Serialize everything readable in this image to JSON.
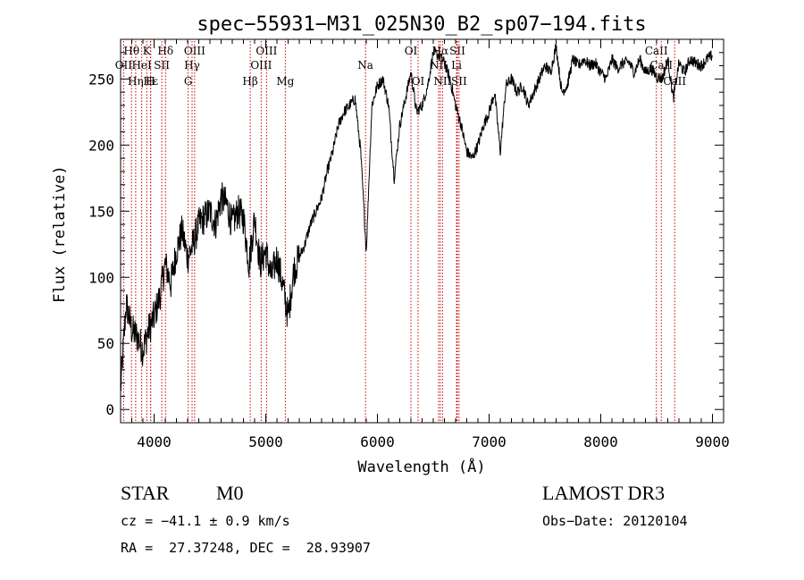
{
  "chart_data": {
    "type": "line",
    "title": "spec−55931−M31_025N30_B2_sp07−194.fits",
    "xlabel": "Wavelength (Å)",
    "ylabel": "Flux (relative)",
    "xlim": [
      3700,
      9100
    ],
    "ylim": [
      -10,
      280
    ],
    "xticks": [
      4000,
      5000,
      6000,
      7000,
      8000,
      9000
    ],
    "yticks": [
      0,
      50,
      100,
      150,
      200,
      250
    ],
    "colors": {
      "spectrum": "#000000",
      "lines": "#cc0000"
    },
    "spectrum": {
      "x": [
        3700,
        3750,
        3800,
        3850,
        3900,
        3950,
        4000,
        4050,
        4100,
        4150,
        4200,
        4250,
        4300,
        4350,
        4400,
        4450,
        4500,
        4550,
        4600,
        4650,
        4700,
        4750,
        4800,
        4850,
        4900,
        4950,
        5000,
        5050,
        5100,
        5150,
        5200,
        5250,
        5300,
        5350,
        5400,
        5450,
        5500,
        5550,
        5600,
        5650,
        5700,
        5750,
        5800,
        5850,
        5900,
        5950,
        6000,
        6050,
        6100,
        6150,
        6200,
        6250,
        6300,
        6350,
        6400,
        6450,
        6500,
        6550,
        6600,
        6650,
        6700,
        6750,
        6800,
        6850,
        6900,
        6950,
        7000,
        7050,
        7100,
        7150,
        7200,
        7250,
        7300,
        7350,
        7400,
        7450,
        7500,
        7550,
        7600,
        7650,
        7700,
        7750,
        7800,
        7850,
        7900,
        7950,
        8000,
        8050,
        8100,
        8150,
        8200,
        8250,
        8300,
        8350,
        8400,
        8450,
        8500,
        8550,
        8600,
        8650,
        8700,
        8750,
        8800,
        8850,
        8900,
        8950,
        9000
      ],
      "y": [
        15,
        80,
        60,
        55,
        45,
        60,
        70,
        85,
        110,
        95,
        120,
        135,
        115,
        125,
        140,
        145,
        150,
        140,
        160,
        155,
        140,
        150,
        145,
        110,
        145,
        110,
        120,
        100,
        115,
        95,
        70,
        105,
        115,
        125,
        140,
        150,
        160,
        180,
        195,
        215,
        225,
        230,
        235,
        195,
        120,
        230,
        245,
        250,
        230,
        175,
        215,
        235,
        255,
        225,
        230,
        245,
        270,
        268,
        262,
        250,
        230,
        215,
        195,
        190,
        200,
        215,
        225,
        240,
        195,
        245,
        250,
        240,
        245,
        230,
        240,
        250,
        260,
        255,
        275,
        240,
        245,
        265,
        260,
        265,
        260,
        262,
        255,
        250,
        265,
        258,
        262,
        263,
        255,
        265,
        255,
        258,
        252,
        250,
        265,
        235,
        262,
        255,
        265,
        262,
        260,
        265,
        268
      ]
    },
    "lines": [
      {
        "label": "Hθ",
        "wl": 3798,
        "row": 1
      },
      {
        "label": "OII",
        "wl": 3727,
        "row": 2
      },
      {
        "label": "Hη",
        "wl": 3835,
        "row": 3
      },
      {
        "label": "K",
        "wl": 3934,
        "row": 1
      },
      {
        "label": "HeI",
        "wl": 3889,
        "row": 2
      },
      {
        "label": "Hε",
        "wl": 3970,
        "row": 3
      },
      {
        "label": "SII",
        "wl": 4069,
        "row": 2
      },
      {
        "label": "H",
        "wl": 3968,
        "row": 3
      },
      {
        "label": "Hδ",
        "wl": 4102,
        "row": 1
      },
      {
        "label": "OIII",
        "wl": 4363,
        "row": 1
      },
      {
        "label": "Hγ",
        "wl": 4340,
        "row": 2
      },
      {
        "label": "G",
        "wl": 4305,
        "row": 3
      },
      {
        "label": "Hβ",
        "wl": 4861,
        "row": 3
      },
      {
        "label": "OIII",
        "wl": 5007,
        "row": 1
      },
      {
        "label": "OIII",
        "wl": 4959,
        "row": 2
      },
      {
        "label": "Mg",
        "wl": 5175,
        "row": 3
      },
      {
        "label": "Na",
        "wl": 5893,
        "row": 2
      },
      {
        "label": "OI",
        "wl": 6300,
        "row": 1
      },
      {
        "label": "OI",
        "wl": 6364,
        "row": 3
      },
      {
        "label": "Hα",
        "wl": 6563,
        "row": 1
      },
      {
        "label": "SII",
        "wl": 6716,
        "row": 1
      },
      {
        "label": "NII",
        "wl": 6548,
        "row": 2
      },
      {
        "label": "Li",
        "wl": 6708,
        "row": 2
      },
      {
        "label": "NII",
        "wl": 6583,
        "row": 3
      },
      {
        "label": "SII",
        "wl": 6731,
        "row": 3
      },
      {
        "label": "CaII",
        "wl": 8498,
        "row": 1
      },
      {
        "label": "CaII",
        "wl": 8542,
        "row": 2
      },
      {
        "label": "CaII",
        "wl": 8662,
        "row": 3
      }
    ]
  },
  "info": {
    "class": "STAR",
    "subclass": "M0",
    "survey": "LAMOST DR3",
    "cz": "cz = −41.1 ± 0.9 km/s",
    "obs_date": "Obs−Date: 20120104",
    "coords": "RA =  27.37248, DEC =  28.93907"
  }
}
